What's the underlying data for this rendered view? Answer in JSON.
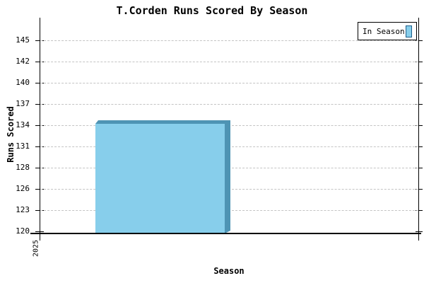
{
  "title": "T.Corden Runs Scored By Season",
  "legend": {
    "label": "In Season"
  },
  "axes": {
    "y_label": "Runs Scored",
    "x_label": "Season",
    "x_tick": "2025"
  },
  "colors": {
    "bar_face": "#87CEEB",
    "bar_edge_3d": "#4E94B4",
    "gridline": "#C4C4C4",
    "axis": "#000000",
    "legend_border": "#000000",
    "legend_swatch_border": "#1F5E8A"
  },
  "chart_data": {
    "type": "bar",
    "title": "T.Corden Runs Scored By Season",
    "xlabel": "Season",
    "ylabel": "Runs Scored",
    "categories": [
      "2025"
    ],
    "series": [
      {
        "name": "In Season",
        "values": [
          134.3
        ]
      }
    ],
    "ylim": [
      120,
      145
    ],
    "ytick_labels": [
      "145",
      "142",
      "140",
      "137",
      "134",
      "131",
      "128",
      "126",
      "123",
      "120"
    ],
    "grid": true,
    "grid_style": "dashed",
    "legend_position": "upper-right",
    "bar_style": "3d"
  }
}
